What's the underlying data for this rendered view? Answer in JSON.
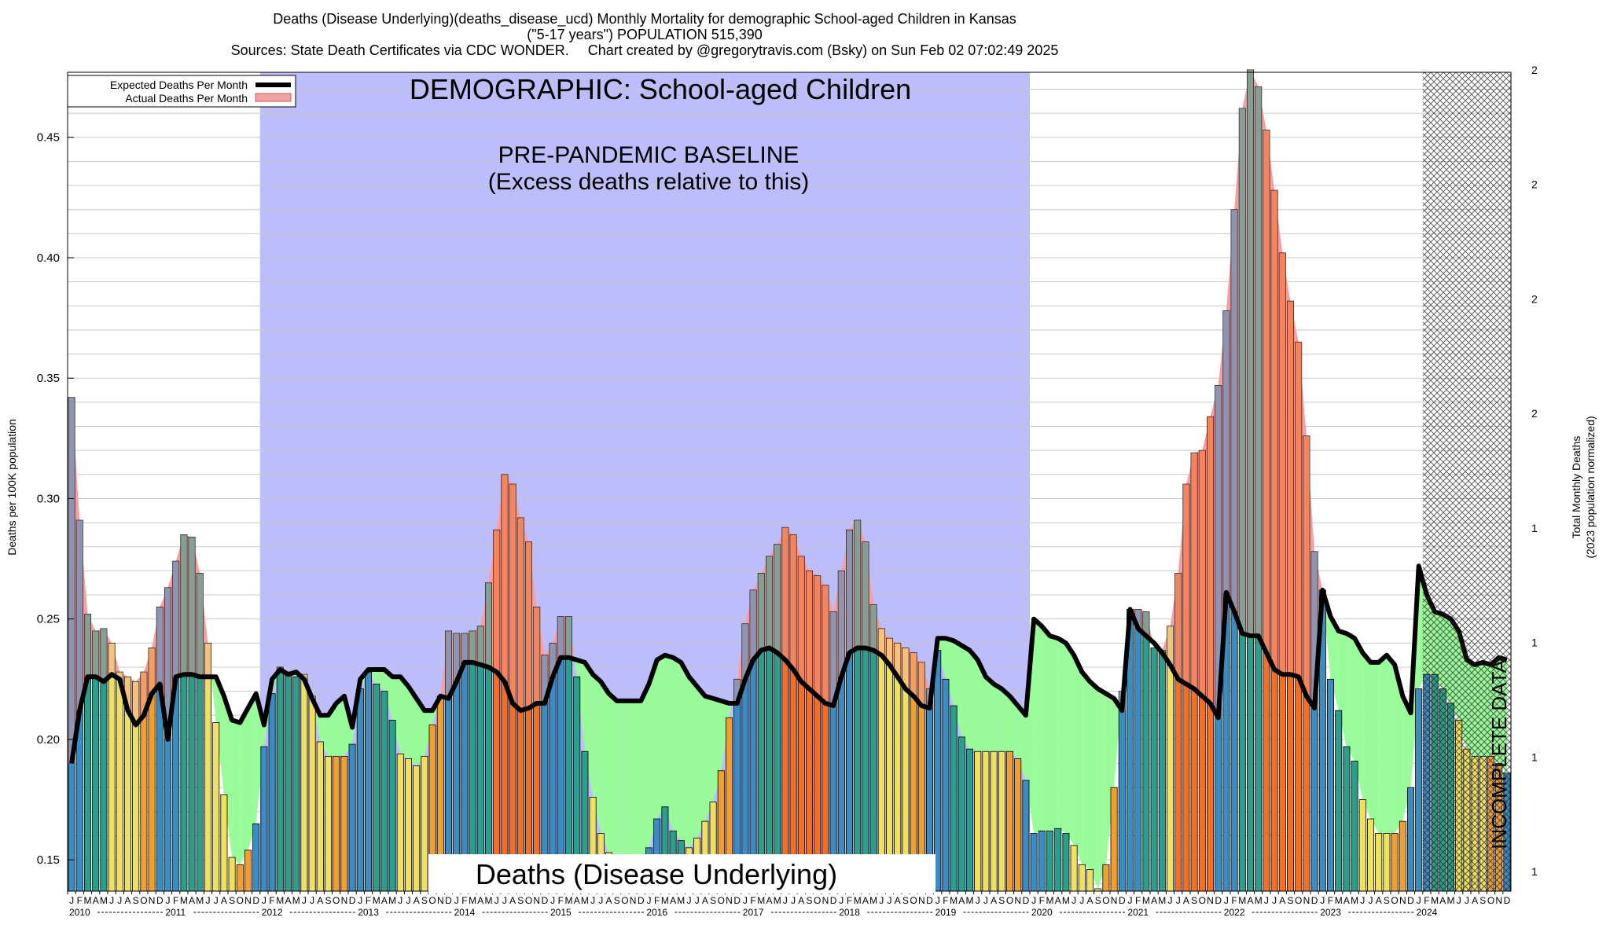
{
  "header": {
    "line1": "Deaths (Disease Underlying)(deaths_disease_ucd) Monthly Mortality for demographic School-aged Children in Kansas",
    "line2": "(\"5-17 years\") POPULATION 515,390",
    "sources": "Sources: State Death Certificates via CDC WONDER.",
    "credit": "Chart created by @gregorytravis.com (Bsky) on Sun Feb 02 07:02:49 2025"
  },
  "legend": {
    "expected": "Expected Deaths Per Month",
    "actual": "Actual Deaths Per Month"
  },
  "annotations": {
    "demographic": "DEMOGRAPHIC: School-aged Children",
    "baseline_line1": "PRE-PANDEMIC BASELINE",
    "baseline_line2": "(Excess deaths relative to this)",
    "incomplete": "INCOMPLETE DATA",
    "cause": "Deaths (Disease Underlying)"
  },
  "axes": {
    "ylabel": "Deaths per 100K population",
    "y2label_line1": "Total Monthly Deaths",
    "y2label_line2": "(2023 population normalized)"
  },
  "colors": {
    "baseline_fill": "#bdbdfb",
    "excess_fill": "#f4a0a0",
    "deficit_fill": "#99fb99",
    "expected_line": "#000000",
    "bar_winter": "#3c8cc0",
    "bar_spring": "#2d9e8a",
    "bar_summer": "#f0e060",
    "bar_fall": "#f0a030",
    "bar_peak": "#f07028"
  },
  "chart_data": {
    "type": "bar",
    "title": "Deaths (Disease Underlying)(deaths_disease_ucd) Monthly Mortality for demographic School-aged Children in Kansas",
    "ylabel": "Deaths per 100K population",
    "y2label": "Total Monthly Deaths (2023 population normalized)",
    "ylim": [
      0.137,
      0.477
    ],
    "yticks": [
      "0.15",
      "0.20",
      "0.25",
      "0.30",
      "0.35",
      "0.40",
      "0.45"
    ],
    "y2ticks": [
      "1",
      "1",
      "1",
      "1",
      "2",
      "2",
      "2",
      "2"
    ],
    "start": "2010-01",
    "month_letters": [
      "J",
      "F",
      "M",
      "A",
      "M",
      "J",
      "J",
      "A",
      "S",
      "O",
      "N",
      "D"
    ],
    "years": [
      "2010",
      "2011",
      "2012",
      "2013",
      "2014",
      "2015",
      "2016",
      "2017",
      "2018",
      "2019",
      "2020",
      "2021",
      "2022",
      "2023",
      "2024"
    ],
    "baseline_period": [
      "2012-01",
      "2019-12"
    ],
    "incomplete_from": "2024-02",
    "grid": true,
    "legend_position": "top-left",
    "series": [
      {
        "name": "Actual Deaths Per Month",
        "values": [
          0.342,
          0.291,
          0.252,
          0.245,
          0.246,
          0.24,
          0.228,
          0.226,
          0.224,
          0.228,
          0.238,
          0.255,
          0.263,
          0.274,
          0.285,
          0.284,
          0.269,
          0.24,
          0.207,
          0.177,
          0.151,
          0.148,
          0.154,
          0.165,
          0.197,
          0.219,
          0.23,
          0.228,
          0.226,
          0.227,
          0.218,
          0.199,
          0.193,
          0.193,
          0.193,
          0.198,
          0.221,
          0.228,
          0.223,
          0.22,
          0.208,
          0.194,
          0.192,
          0.189,
          0.193,
          0.206,
          0.218,
          0.245,
          0.244,
          0.244,
          0.245,
          0.247,
          0.265,
          0.287,
          0.31,
          0.306,
          0.292,
          0.282,
          0.255,
          0.235,
          0.24,
          0.251,
          0.251,
          0.226,
          0.195,
          0.176,
          0.161,
          0.153,
          0.145,
          0.139,
          0.142,
          0.148,
          0.155,
          0.167,
          0.172,
          0.162,
          0.158,
          0.155,
          0.159,
          0.166,
          0.174,
          0.187,
          0.209,
          0.225,
          0.248,
          0.262,
          0.269,
          0.276,
          0.281,
          0.288,
          0.285,
          0.276,
          0.27,
          0.268,
          0.264,
          0.253,
          0.27,
          0.287,
          0.291,
          0.282,
          0.256,
          0.246,
          0.242,
          0.24,
          0.238,
          0.236,
          0.232,
          0.221,
          0.237,
          0.225,
          0.214,
          0.201,
          0.196,
          0.195,
          0.195,
          0.195,
          0.195,
          0.195,
          0.192,
          0.183,
          0.161,
          0.162,
          0.162,
          0.163,
          0.161,
          0.156,
          0.148,
          0.146,
          0.138,
          0.148,
          0.18,
          0.22,
          0.254,
          0.254,
          0.253,
          0.238,
          0.237,
          0.247,
          0.269,
          0.306,
          0.319,
          0.32,
          0.334,
          0.347,
          0.378,
          0.42,
          0.462,
          0.478,
          0.471,
          0.453,
          0.428,
          0.402,
          0.382,
          0.365,
          0.326,
          0.278,
          0.262,
          0.225,
          0.212,
          0.197,
          0.191,
          0.175,
          0.167,
          0.161,
          0.161,
          0.161,
          0.166,
          0.18,
          0.221,
          0.227,
          0.227,
          0.221,
          0.215,
          0.208,
          0.196,
          0.193,
          0.193,
          0.193,
          0.19,
          0.186
        ]
      },
      {
        "name": "Expected Deaths Per Month",
        "values": [
          0.19,
          0.212,
          0.226,
          0.226,
          0.224,
          0.227,
          0.225,
          0.212,
          0.206,
          0.21,
          0.219,
          0.223,
          0.2,
          0.226,
          0.227,
          0.227,
          0.226,
          0.226,
          0.226,
          0.218,
          0.208,
          0.207,
          0.213,
          0.219,
          0.206,
          0.225,
          0.229,
          0.227,
          0.228,
          0.225,
          0.217,
          0.21,
          0.21,
          0.215,
          0.218,
          0.205,
          0.225,
          0.229,
          0.229,
          0.229,
          0.226,
          0.226,
          0.222,
          0.217,
          0.212,
          0.212,
          0.218,
          0.217,
          0.224,
          0.232,
          0.232,
          0.231,
          0.23,
          0.228,
          0.224,
          0.215,
          0.212,
          0.213,
          0.215,
          0.215,
          0.226,
          0.234,
          0.234,
          0.233,
          0.232,
          0.227,
          0.224,
          0.219,
          0.216,
          0.216,
          0.216,
          0.216,
          0.223,
          0.233,
          0.235,
          0.234,
          0.232,
          0.226,
          0.222,
          0.218,
          0.217,
          0.216,
          0.215,
          0.215,
          0.225,
          0.233,
          0.237,
          0.238,
          0.236,
          0.233,
          0.229,
          0.224,
          0.221,
          0.218,
          0.215,
          0.214,
          0.226,
          0.236,
          0.238,
          0.238,
          0.237,
          0.235,
          0.231,
          0.226,
          0.221,
          0.218,
          0.214,
          0.213,
          0.242,
          0.242,
          0.241,
          0.239,
          0.237,
          0.233,
          0.226,
          0.223,
          0.221,
          0.218,
          0.214,
          0.21,
          0.25,
          0.247,
          0.243,
          0.242,
          0.24,
          0.235,
          0.228,
          0.224,
          0.221,
          0.219,
          0.217,
          0.212,
          0.254,
          0.246,
          0.243,
          0.24,
          0.236,
          0.231,
          0.225,
          0.223,
          0.221,
          0.218,
          0.215,
          0.209,
          0.261,
          0.253,
          0.244,
          0.243,
          0.243,
          0.236,
          0.229,
          0.227,
          0.227,
          0.226,
          0.218,
          0.213,
          0.262,
          0.251,
          0.245,
          0.244,
          0.242,
          0.236,
          0.232,
          0.232,
          0.235,
          0.231,
          0.218,
          0.211,
          0.272,
          0.26,
          0.253,
          0.252,
          0.25,
          0.245,
          0.233,
          0.231,
          0.232,
          0.231,
          0.234,
          0.233
        ]
      }
    ]
  }
}
